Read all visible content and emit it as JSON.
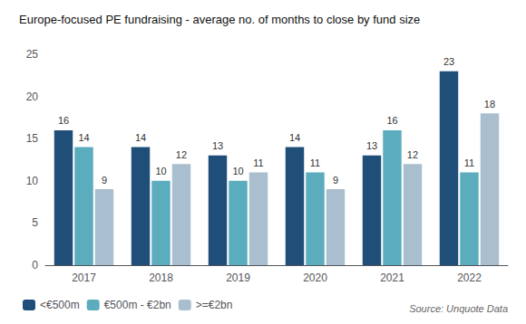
{
  "chart_data": {
    "type": "bar",
    "title": "Europe-focused PE fundraising - average no. of months to close by fund size",
    "categories": [
      "2017",
      "2018",
      "2019",
      "2020",
      "2021",
      "2022"
    ],
    "series": [
      {
        "name": "<€500m",
        "color": "#1f4e79",
        "values": [
          16,
          14,
          13,
          14,
          13,
          23
        ]
      },
      {
        "name": "€500m - €2bn",
        "color": "#5badbe",
        "values": [
          14,
          10,
          10,
          11,
          16,
          11
        ]
      },
      {
        "name": ">=€2bn",
        "color": "#a9bfcf",
        "values": [
          9,
          12,
          11,
          9,
          12,
          18
        ]
      }
    ],
    "ylim": [
      0,
      25
    ],
    "yticks": [
      0,
      5,
      10,
      15,
      20,
      25
    ],
    "grid": false,
    "legend": "lower left",
    "data_labels": true,
    "annotations": [
      "Source: Unquote Data"
    ]
  }
}
